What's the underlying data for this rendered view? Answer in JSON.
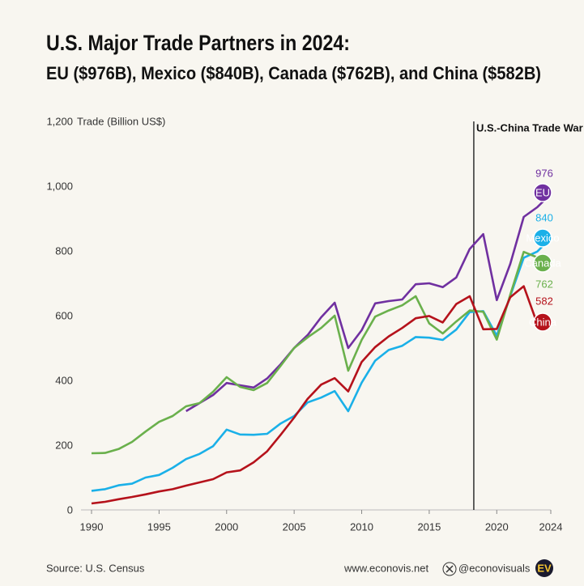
{
  "chart_data": {
    "type": "line",
    "title": "U.S. Major Trade Partners in 2024:",
    "subtitle": "EU ($976B), Mexico ($840B), Canada ($762B), and China ($582B)",
    "y_label": "Trade (Billion US$)",
    "x": [
      1990,
      1991,
      1992,
      1993,
      1994,
      1995,
      1996,
      1997,
      1998,
      1999,
      2000,
      2001,
      2002,
      2003,
      2004,
      2005,
      2006,
      2007,
      2008,
      2009,
      2010,
      2011,
      2012,
      2013,
      2014,
      2015,
      2016,
      2017,
      2018,
      2019,
      2020,
      2021,
      2022,
      2023,
      2024
    ],
    "series": [
      {
        "name": "EU",
        "color": "#7030a0",
        "values": [
          null,
          null,
          null,
          null,
          null,
          null,
          null,
          305,
          330,
          355,
          392,
          385,
          378,
          406,
          450,
          500,
          540,
          595,
          640,
          500,
          555,
          638,
          645,
          650,
          697,
          700,
          688,
          718,
          806,
          852,
          648,
          760,
          905,
          935,
          976
        ]
      },
      {
        "name": "Mexico",
        "color": "#1ab0e8",
        "values": [
          59,
          64,
          76,
          81,
          100,
          108,
          130,
          157,
          173,
          197,
          248,
          233,
          232,
          235,
          267,
          290,
          332,
          347,
          367,
          305,
          393,
          461,
          494,
          507,
          534,
          532,
          525,
          557,
          611,
          614,
          538,
          661,
          779,
          798,
          840
        ]
      },
      {
        "name": "Canada",
        "color": "#6ab04c",
        "values": [
          175,
          176,
          188,
          210,
          242,
          272,
          290,
          320,
          330,
          365,
          410,
          380,
          370,
          392,
          445,
          500,
          533,
          562,
          600,
          430,
          525,
          597,
          616,
          632,
          660,
          576,
          545,
          582,
          616,
          612,
          526,
          665,
          797,
          780,
          762
        ]
      },
      {
        "name": "China",
        "color": "#b5121b",
        "values": [
          20,
          25,
          33,
          40,
          48,
          57,
          64,
          75,
          85,
          95,
          116,
          122,
          147,
          181,
          232,
          285,
          343,
          387,
          407,
          366,
          457,
          503,
          536,
          562,
          592,
          599,
          579,
          636,
          660,
          558,
          559,
          657,
          691,
          575,
          582
        ]
      }
    ],
    "xlim": [
      1990,
      2024
    ],
    "xticks": [
      1990,
      1995,
      2000,
      2005,
      2010,
      2015,
      2020,
      2024
    ],
    "ylim": [
      0,
      1200
    ],
    "yticks": [
      0,
      200,
      400,
      600,
      800,
      {
        "value": 1000,
        "label": "1,000"
      },
      {
        "value": 1200,
        "label": "1,200"
      }
    ],
    "grid": false,
    "annotation": {
      "text": "U.S.-China Trade War",
      "x": 2018.3
    },
    "source": "Source: U.S. Census",
    "website": "www.econovis.net",
    "handle": "@econovisuals",
    "logo": "EV"
  }
}
